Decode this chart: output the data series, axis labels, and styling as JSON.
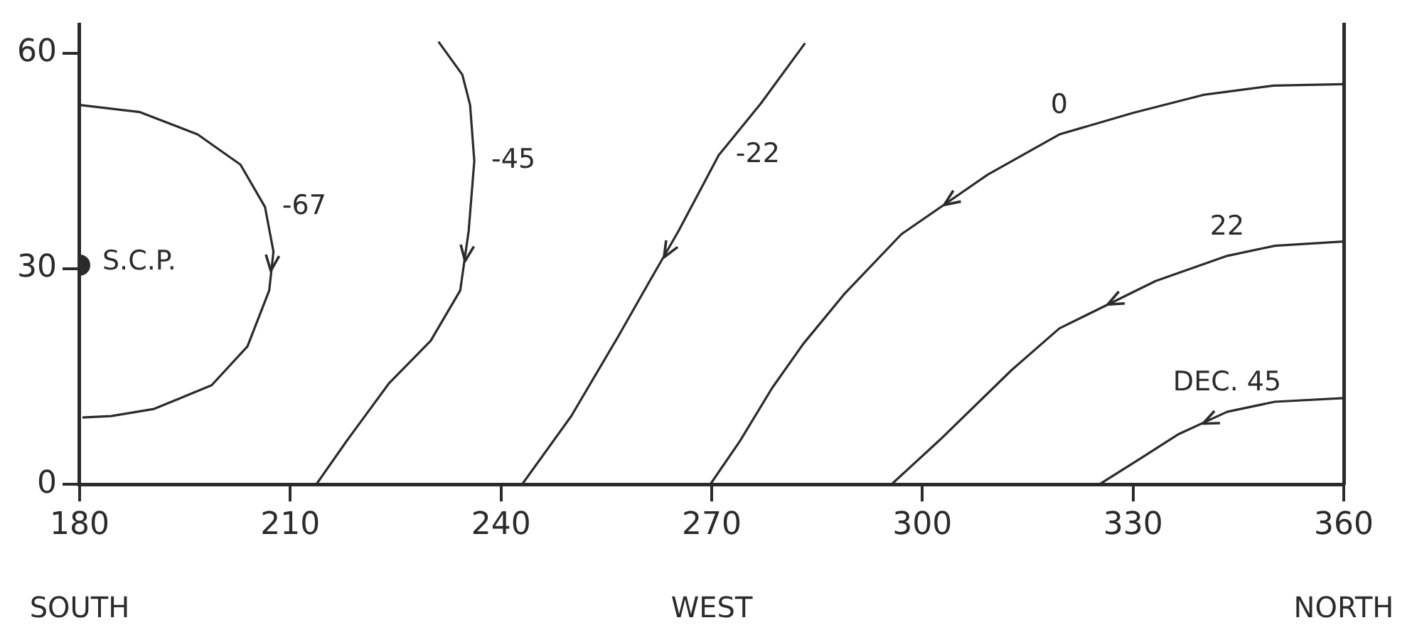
{
  "chart_data": {
    "type": "line",
    "xlim": [
      180,
      360
    ],
    "xticks": [
      180,
      210,
      240,
      270,
      300,
      330,
      360
    ],
    "ylim": [
      0,
      64
    ],
    "yticks": [
      0,
      30,
      60
    ],
    "series": [
      {
        "name": "-67",
        "color": "#2b2b2b",
        "x": [
          180,
          188.6,
          196.8,
          202.9,
          206.4,
          207.6,
          207,
          203.9,
          198.8,
          190.6,
          184.5,
          180.4
        ],
        "values": [
          52.8,
          51.8,
          48.7,
          44.5,
          38.6,
          32.4,
          27,
          19.2,
          13.8,
          10.5,
          9.5,
          9.3
        ]
      },
      {
        "name": "-45",
        "color": "#2b2b2b",
        "x": [
          231.1,
          234.5,
          235.6,
          236.2,
          235.4,
          234.2,
          230,
          224,
          218,
          213.7
        ],
        "values": [
          61.6,
          57,
          52.8,
          45,
          35.3,
          27,
          20,
          14,
          6,
          0
        ]
      },
      {
        "name": "-22",
        "color": "#2b2b2b",
        "x": [
          283.3,
          277,
          271,
          265.3,
          261,
          256.7,
          250,
          243
        ],
        "values": [
          61.4,
          53,
          45.8,
          35.3,
          28,
          20.6,
          9.5,
          0
        ]
      },
      {
        "name": "0",
        "color": "#2b2b2b",
        "x": [
          360,
          350,
          340,
          330,
          319.5,
          309.3,
          297,
          288.8,
          283,
          278.6,
          274,
          269.8
        ],
        "values": [
          55.7,
          55.5,
          54.2,
          51.7,
          48.7,
          43.1,
          34.8,
          26.4,
          19.5,
          13.4,
          6,
          0
        ]
      },
      {
        "name": "22",
        "color": "#2b2b2b",
        "x": [
          360,
          350.2,
          343.4,
          333.2,
          319.5,
          312.7,
          302.5,
          295.6
        ],
        "values": [
          33.8,
          33.2,
          31.8,
          28.3,
          21.7,
          15.9,
          6.2,
          0
        ]
      },
      {
        "name": "DEC. 45",
        "color": "#2b2b2b",
        "x": [
          360,
          350.2,
          343.4,
          336.5,
          331.2,
          325.2
        ],
        "values": [
          12,
          11.5,
          10.1,
          7,
          3.7,
          0
        ]
      },
      {
        "type": "scatter",
        "name": "S.C.P.",
        "marker": "circle",
        "color": "#2b2b2b",
        "x": [
          180
        ],
        "values": [
          30.5
        ]
      }
    ],
    "annotations": [
      "SOUTH",
      "WEST",
      "NORTH"
    ],
    "legend": false
  }
}
